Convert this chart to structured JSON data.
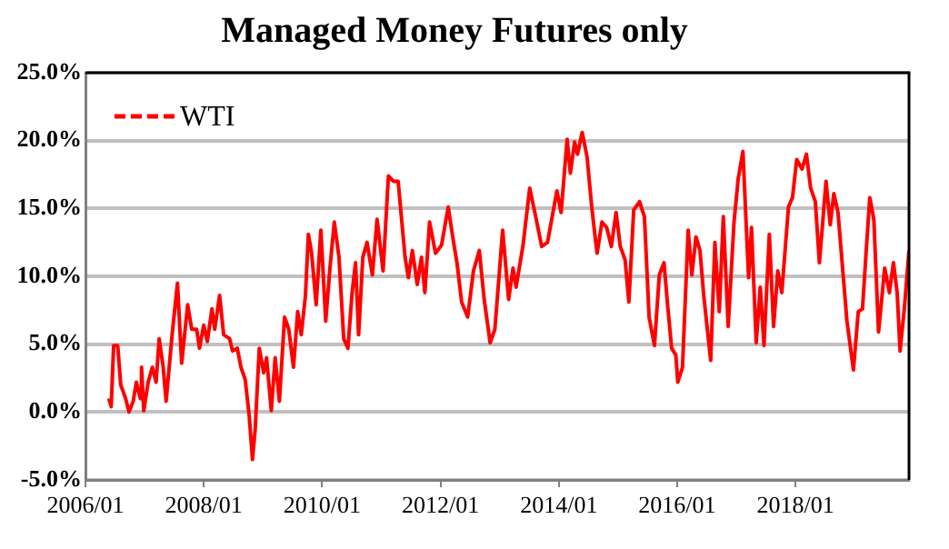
{
  "chart_data": {
    "type": "line",
    "title": "Managed Money Futures only",
    "xlim": [
      "2006-01-01",
      "2019-12-02"
    ],
    "xticks": [
      {
        "value": "2006-01",
        "label": "2006/01"
      },
      {
        "value": "2008-01",
        "label": "2008/01"
      },
      {
        "value": "2010-01",
        "label": "2010/01"
      },
      {
        "value": "2012-01",
        "label": "2012/01"
      },
      {
        "value": "2014-01",
        "label": "2014/01"
      },
      {
        "value": "2016-01",
        "label": "2016/01"
      },
      {
        "value": "2018-01",
        "label": "2018/01"
      }
    ],
    "ylim": [
      -5,
      25
    ],
    "yticks": [
      {
        "value": -5,
        "label": "-5.0%"
      },
      {
        "value": 0,
        "label": "0.0%"
      },
      {
        "value": 5,
        "label": "5.0%"
      },
      {
        "value": 10,
        "label": "10.0%"
      },
      {
        "value": 15,
        "label": "15.0%"
      },
      {
        "value": 20,
        "label": "20.0%"
      },
      {
        "value": 25,
        "label": "25.0%"
      }
    ],
    "grid": "y",
    "legend": "top left",
    "marker": "none",
    "line_style": "solid",
    "series": [
      {
        "name": "WTI",
        "color": "#ff0000",
        "x": [
          "2006-05-25",
          "2006-06-09",
          "2006-06-24",
          "2006-07-19",
          "2006-08-07",
          "2006-09-06",
          "2006-09-27",
          "2006-10-23",
          "2006-11-11",
          "2006-12-06",
          "2006-12-13",
          "2006-12-27",
          "2007-01-23",
          "2007-02-18",
          "2007-03-13",
          "2007-04-01",
          "2007-04-26",
          "2007-05-14",
          "2007-06-20",
          "2007-07-23",
          "2007-08-18",
          "2007-09-24",
          "2007-10-19",
          "2007-11-18",
          "2007-12-06",
          "2008-01-01",
          "2008-01-23",
          "2008-02-21",
          "2008-03-09",
          "2008-04-08",
          "2008-05-03",
          "2008-06-09",
          "2008-06-27",
          "2008-07-26",
          "2008-08-18",
          "2008-09-13",
          "2008-10-08",
          "2008-10-28",
          "2008-11-14",
          "2008-12-09",
          "2009-01-05",
          "2009-01-23",
          "2009-02-21",
          "2009-03-17",
          "2009-04-12",
          "2009-05-14",
          "2009-06-09",
          "2009-07-08",
          "2009-08-03",
          "2009-08-25",
          "2009-09-20",
          "2009-10-08",
          "2009-10-28",
          "2009-11-25",
          "2009-12-24",
          "2010-01-23",
          "2010-02-18",
          "2010-03-17",
          "2010-04-15",
          "2010-05-14",
          "2010-06-09",
          "2010-07-05",
          "2010-07-26",
          "2010-08-14",
          "2010-09-09",
          "2010-10-05",
          "2010-11-07",
          "2010-12-06",
          "2011-01-12",
          "2011-02-14",
          "2011-03-17",
          "2011-04-15",
          "2011-05-11",
          "2011-05-28",
          "2011-06-17",
          "2011-07-12",
          "2011-08-11",
          "2011-09-06",
          "2011-09-27",
          "2011-10-26",
          "2011-12-02",
          "2012-01-08",
          "2012-02-18",
          "2012-03-17",
          "2012-04-12",
          "2012-05-11",
          "2012-06-17",
          "2012-07-23",
          "2012-08-28",
          "2012-09-27",
          "2012-11-03",
          "2012-12-02",
          "2013-01-19",
          "2013-02-25",
          "2013-03-24",
          "2013-04-12",
          "2013-05-25",
          "2013-07-05",
          "2013-08-11",
          "2013-09-17",
          "2013-10-23",
          "2013-12-20",
          "2014-01-15",
          "2014-02-21",
          "2014-03-13",
          "2014-04-08",
          "2014-04-26",
          "2014-05-25",
          "2014-06-24",
          "2014-07-23",
          "2014-08-11",
          "2014-08-25",
          "2014-09-24",
          "2014-10-23",
          "2014-11-21",
          "2014-12-20",
          "2015-01-15",
          "2015-02-14",
          "2015-03-09",
          "2015-04-08",
          "2015-05-14",
          "2015-06-13",
          "2015-07-12",
          "2015-08-14",
          "2015-09-13",
          "2015-10-12",
          "2015-11-03",
          "2015-11-28",
          "2015-12-24",
          "2016-01-05",
          "2016-02-03",
          "2016-03-09",
          "2016-04-01",
          "2016-04-26",
          "2016-05-21",
          "2016-06-13",
          "2016-07-26",
          "2016-08-21",
          "2016-09-17",
          "2016-10-12",
          "2016-11-11",
          "2016-12-17",
          "2017-01-12",
          "2017-02-10",
          "2017-03-17",
          "2017-04-04",
          "2017-05-03",
          "2017-05-28",
          "2017-06-20",
          "2017-07-23",
          "2017-08-18",
          "2017-09-13",
          "2017-10-08",
          "2017-11-18",
          "2017-12-13",
          "2018-01-08",
          "2018-02-10",
          "2018-03-09",
          "2018-04-04",
          "2018-05-03",
          "2018-05-28",
          "2018-07-08",
          "2018-08-03",
          "2018-08-25",
          "2018-09-20",
          "2018-10-23",
          "2018-11-14",
          "2018-12-24",
          "2019-01-23",
          "2019-02-18",
          "2019-03-13",
          "2019-04-04",
          "2019-04-29",
          "2019-05-28",
          "2019-07-05",
          "2019-08-03",
          "2019-08-28",
          "2019-09-20",
          "2019-10-08",
          "2019-11-03",
          "2019-12-02"
        ],
        "values": [
          1.0,
          0.4,
          4.9,
          4.9,
          2.0,
          1.0,
          0.0,
          0.8,
          2.2,
          1.0,
          3.3,
          0.1,
          2.2,
          3.3,
          2.2,
          5.4,
          3.3,
          0.8,
          5.7,
          9.5,
          3.6,
          7.9,
          6.1,
          6.1,
          4.7,
          6.4,
          5.2,
          7.6,
          6.1,
          8.6,
          5.7,
          5.4,
          4.5,
          4.7,
          3.3,
          2.4,
          -0.3,
          -3.5,
          -1.2,
          4.7,
          2.9,
          4.0,
          0.1,
          4.0,
          0.8,
          7.0,
          6.1,
          3.3,
          7.4,
          5.7,
          8.6,
          13.1,
          11.7,
          7.9,
          13.4,
          6.7,
          10.6,
          14.0,
          11.4,
          5.4,
          4.7,
          8.8,
          11.0,
          5.7,
          11.4,
          12.5,
          10.1,
          14.2,
          10.4,
          17.4,
          17.0,
          17.0,
          13.6,
          11.4,
          9.9,
          11.9,
          9.4,
          11.4,
          8.8,
          14.0,
          11.7,
          12.3,
          15.1,
          12.9,
          11.0,
          8.1,
          7.0,
          10.4,
          11.9,
          8.3,
          5.1,
          6.1,
          13.4,
          8.3,
          10.6,
          9.2,
          12.3,
          16.5,
          14.4,
          12.2,
          12.5,
          16.3,
          14.7,
          20.1,
          17.6,
          19.9,
          19.0,
          20.6,
          18.8,
          15.1,
          13.1,
          11.7,
          14.0,
          13.6,
          12.2,
          14.7,
          12.2,
          11.2,
          8.1,
          14.9,
          15.5,
          14.4,
          7.0,
          4.9,
          10.1,
          11.0,
          7.9,
          4.7,
          4.2,
          2.2,
          3.3,
          13.4,
          10.1,
          12.9,
          11.9,
          8.6,
          3.8,
          12.5,
          7.4,
          14.4,
          6.3,
          14.0,
          17.2,
          19.2,
          9.9,
          13.6,
          5.1,
          9.2,
          4.9,
          13.1,
          6.3,
          10.4,
          8.8,
          15.1,
          15.8,
          18.6,
          17.9,
          19.0,
          16.5,
          15.5,
          11.0,
          17.0,
          13.8,
          16.1,
          14.7,
          9.9,
          6.7,
          3.1,
          7.4,
          7.6,
          11.9,
          15.8,
          14.2,
          5.9,
          10.6,
          8.8,
          11.0,
          8.8,
          4.5,
          7.6,
          11.9
        ]
      }
    ]
  }
}
